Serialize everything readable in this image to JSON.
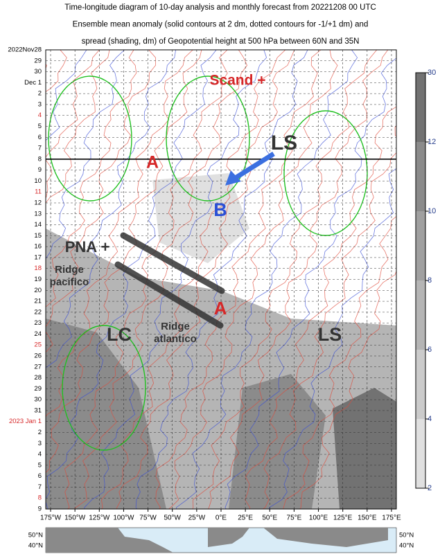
{
  "chart_data": {
    "type": "hovmoller",
    "title_lines": [
      "Time-longitude diagram of 10-day analysis and monthly forecast from 20221208 00 UTC",
      "Ensemble mean anomaly (solid contours at 2 dm, dotted contours for -1/+1 dm) and",
      "spread (shading, dm) of Geopotential height at 500 hPa between 60N and 35N"
    ],
    "xlim": [
      -180,
      180
    ],
    "xticks": [
      {
        "value": -175,
        "label": "175°W"
      },
      {
        "value": -150,
        "label": "150°W"
      },
      {
        "value": -125,
        "label": "125°W"
      },
      {
        "value": -100,
        "label": "100°W"
      },
      {
        "value": -75,
        "label": "75°W"
      },
      {
        "value": -50,
        "label": "50°W"
      },
      {
        "value": -25,
        "label": "25°W"
      },
      {
        "value": 0,
        "label": "0°E"
      },
      {
        "value": 25,
        "label": "25°E"
      },
      {
        "value": 50,
        "label": "50°E"
      },
      {
        "value": 75,
        "label": "75°E"
      },
      {
        "value": 100,
        "label": "100°E"
      },
      {
        "value": 125,
        "label": "125°E"
      },
      {
        "value": 150,
        "label": "150°E"
      },
      {
        "value": 175,
        "label": "175°E"
      }
    ],
    "y_categories": [
      "2022Nov28",
      "29",
      "30",
      "Dec  1",
      "2",
      "3",
      "4",
      "5",
      "6",
      "7",
      "8",
      "9",
      "10",
      "11",
      "12",
      "13",
      "14",
      "15",
      "16",
      "17",
      "18",
      "19",
      "20",
      "21",
      "22",
      "23",
      "24",
      "25",
      "26",
      "27",
      "28",
      "29",
      "30",
      "31",
      "2023  Jan  1",
      "2",
      "3",
      "4",
      "5",
      "6",
      "7",
      "8",
      "9"
    ],
    "y_category_colors": [
      "#000",
      "#000",
      "#000",
      "#000",
      "#000",
      "#000",
      "#d62728",
      "#000",
      "#000",
      "#000",
      "#000",
      "#000",
      "#000",
      "#d62728",
      "#000",
      "#000",
      "#000",
      "#000",
      "#000",
      "#000",
      "#d62728",
      "#000",
      "#000",
      "#000",
      "#000",
      "#000",
      "#000",
      "#d62728",
      "#000",
      "#000",
      "#000",
      "#000",
      "#000",
      "#000",
      "#d62728",
      "#000",
      "#000",
      "#000",
      "#000",
      "#000",
      "#000",
      "#d62728",
      "#000"
    ],
    "colorbar": {
      "levels": [
        2,
        4,
        6,
        8,
        10,
        12,
        30
      ],
      "colors": [
        "#e0e0e0",
        "#cbcbcb",
        "#b5b5b5",
        "#a0a0a0",
        "#8b8b8b",
        "#727272"
      ]
    },
    "annotations": [
      {
        "lines": [
          "Scand +"
        ],
        "color": "#d62728"
      },
      {
        "lines": [
          "LS"
        ],
        "color": "#333333"
      },
      {
        "lines": [
          "B"
        ],
        "color": "#2a4fd6"
      },
      {
        "lines": [
          "A"
        ],
        "color": "#d62728"
      },
      {
        "lines": [
          "PNA +"
        ],
        "color": "#333333"
      },
      {
        "lines": [
          "Ridge",
          "pacifico"
        ],
        "color": "#333333"
      },
      {
        "lines": [
          "LC"
        ],
        "color": "#333333"
      },
      {
        "lines": [
          "Ridge",
          "atlantico"
        ],
        "color": "#333333"
      },
      {
        "lines": [
          "A"
        ],
        "color": "#d62728"
      },
      {
        "lines": [
          "LS"
        ],
        "color": "#333333"
      }
    ],
    "map_labels": [
      "50°N",
      "40°N"
    ]
  }
}
